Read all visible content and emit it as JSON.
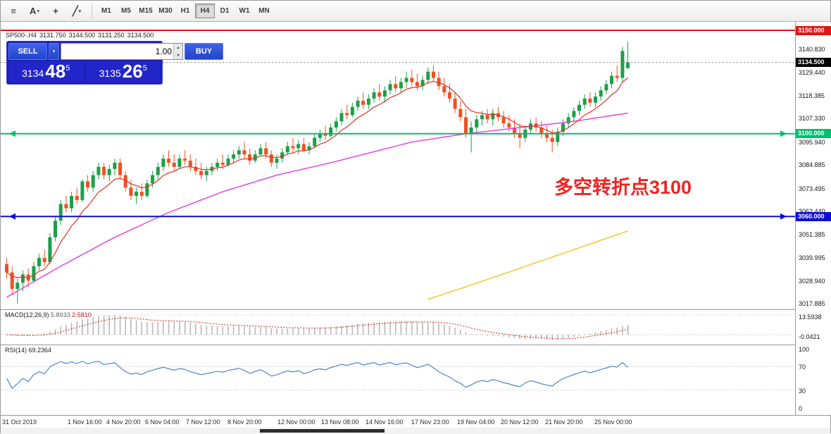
{
  "toolbar": {
    "icons": [
      {
        "name": "grid-icon",
        "glyph": "≡",
        "dropdown": false
      },
      {
        "name": "text-tool-icon",
        "glyph": "A",
        "dropdown": true
      },
      {
        "name": "crosshair-icon",
        "glyph": "+",
        "dropdown": false
      },
      {
        "name": "trendline-tool-icon",
        "glyph": "╱",
        "dropdown": true
      }
    ],
    "timeframes": [
      "M1",
      "M5",
      "M15",
      "M30",
      "H1",
      "H4",
      "D1",
      "W1",
      "MN"
    ],
    "selected_timeframe": "H4"
  },
  "header": {
    "symbol": "SP500-,H4",
    "open": "3131.750",
    "high": "3144.500",
    "low": "3131.250",
    "close": "3134.500"
  },
  "trade_panel": {
    "sell_label": "SELL",
    "buy_label": "BUY",
    "volume": "1.00",
    "sell_price": {
      "big": "3134",
      "mid": "48",
      "sup": "5"
    },
    "buy_price": {
      "big": "3135",
      "mid": "26",
      "sup": "5"
    }
  },
  "annotation": {
    "text": "多空转折点3100",
    "color": "#f02323"
  },
  "levels": [
    {
      "name": "resistance-3150",
      "price": 3150.0,
      "label": "3150.000",
      "color": "#e21414",
      "arrows": false,
      "dotted": false
    },
    {
      "name": "current-price",
      "price": 3134.5,
      "label": "3134.500",
      "color": "#000000",
      "arrows": false,
      "dotted": true
    },
    {
      "name": "pivot-3100",
      "price": 3100.0,
      "label": "3100.000",
      "color": "#00bf6f",
      "arrows": true,
      "dotted": false
    },
    {
      "name": "support-3060",
      "price": 3060.0,
      "label": "3060.000",
      "color": "#0b0bd7",
      "arrows": true,
      "dotted": false
    }
  ],
  "price_axis": [
    "3140.830",
    "3129.440",
    "3118.385",
    "3107.330",
    "3095.940",
    "3084.885",
    "3073.495",
    "3062.440",
    "3051.385",
    "3039.995",
    "3028.940",
    "3017.885"
  ],
  "macd": {
    "name": "MACD(12,26,9)",
    "value": "5.8933",
    "signal_value": "2.5810",
    "axis_max": "13.5938",
    "axis_min": "-0.0421"
  },
  "rsi": {
    "name": "RSI(14)",
    "value": "69.2364",
    "axis": [
      "100",
      "70",
      "30",
      "0"
    ]
  },
  "time_axis": [
    "31 Oct 2019",
    "1 Nov 16:00",
    "4 Nov 20:00",
    "6 Nov 04:00",
    "7 Nov 12:00",
    "8 Nov 20:00",
    "12 Nov 00:00",
    "13 Nov 08:00",
    "14 Nov 16:00",
    "17 Nov 23:00",
    "19 Nov 04:00",
    "20 Nov 12:00",
    "21 Nov 20:00",
    "25 Nov 00:00"
  ],
  "chart_data": {
    "type": "candlestick",
    "symbol": "SP500",
    "timeframe": "H4",
    "price_range": [
      3017.885,
      3150.0
    ],
    "colors": {
      "up": "#1CA049",
      "down": "#F25022"
    },
    "candles_ohlc": [
      [
        3037,
        3040,
        3030,
        3033
      ],
      [
        3033,
        3036,
        3022,
        3025
      ],
      [
        3025,
        3030,
        3018,
        3028
      ],
      [
        3028,
        3034,
        3024,
        3032
      ],
      [
        3032,
        3035,
        3026,
        3029
      ],
      [
        3029,
        3038,
        3028,
        3036
      ],
      [
        3036,
        3042,
        3034,
        3040
      ],
      [
        3040,
        3044,
        3036,
        3038
      ],
      [
        3038,
        3052,
        3037,
        3050
      ],
      [
        3050,
        3060,
        3048,
        3058
      ],
      [
        3058,
        3068,
        3056,
        3066
      ],
      [
        3066,
        3070,
        3062,
        3064
      ],
      [
        3064,
        3072,
        3062,
        3070
      ],
      [
        3070,
        3074,
        3066,
        3068
      ],
      [
        3068,
        3078,
        3067,
        3077
      ],
      [
        3077,
        3080,
        3072,
        3074
      ],
      [
        3074,
        3082,
        3072,
        3080
      ],
      [
        3080,
        3086,
        3078,
        3084
      ],
      [
        3084,
        3086,
        3078,
        3080
      ],
      [
        3080,
        3085,
        3077,
        3083
      ],
      [
        3083,
        3088,
        3080,
        3086
      ],
      [
        3086,
        3088,
        3078,
        3080
      ],
      [
        3080,
        3082,
        3072,
        3074
      ],
      [
        3074,
        3078,
        3068,
        3070
      ],
      [
        3070,
        3074,
        3066,
        3072
      ],
      [
        3072,
        3076,
        3068,
        3070
      ],
      [
        3070,
        3078,
        3069,
        3076
      ],
      [
        3076,
        3082,
        3074,
        3080
      ],
      [
        3080,
        3086,
        3078,
        3084
      ],
      [
        3084,
        3090,
        3082,
        3088
      ],
      [
        3088,
        3092,
        3084,
        3086
      ],
      [
        3086,
        3090,
        3082,
        3084
      ],
      [
        3084,
        3090,
        3083,
        3088
      ],
      [
        3088,
        3092,
        3085,
        3087
      ],
      [
        3087,
        3090,
        3082,
        3084
      ],
      [
        3084,
        3088,
        3080,
        3082
      ],
      [
        3082,
        3086,
        3078,
        3080
      ],
      [
        3080,
        3084,
        3077,
        3082
      ],
      [
        3082,
        3086,
        3080,
        3084
      ],
      [
        3084,
        3088,
        3082,
        3086
      ],
      [
        3086,
        3090,
        3083,
        3085
      ],
      [
        3085,
        3090,
        3084,
        3088
      ],
      [
        3088,
        3092,
        3086,
        3090
      ],
      [
        3090,
        3094,
        3088,
        3092
      ],
      [
        3092,
        3096,
        3088,
        3090
      ],
      [
        3090,
        3093,
        3085,
        3087
      ],
      [
        3087,
        3092,
        3086,
        3090
      ],
      [
        3090,
        3095,
        3089,
        3093
      ],
      [
        3093,
        3096,
        3088,
        3090
      ],
      [
        3090,
        3092,
        3084,
        3086
      ],
      [
        3086,
        3090,
        3083,
        3088
      ],
      [
        3088,
        3093,
        3086,
        3091
      ],
      [
        3091,
        3096,
        3090,
        3094
      ],
      [
        3094,
        3098,
        3091,
        3093
      ],
      [
        3093,
        3097,
        3090,
        3095
      ],
      [
        3095,
        3098,
        3091,
        3092
      ],
      [
        3092,
        3096,
        3090,
        3094
      ],
      [
        3094,
        3100,
        3093,
        3098
      ],
      [
        3098,
        3102,
        3096,
        3100
      ],
      [
        3100,
        3104,
        3097,
        3099
      ],
      [
        3099,
        3105,
        3098,
        3103
      ],
      [
        3103,
        3108,
        3101,
        3106
      ],
      [
        3106,
        3112,
        3104,
        3110
      ],
      [
        3110,
        3114,
        3107,
        3109
      ],
      [
        3109,
        3115,
        3108,
        3113
      ],
      [
        3113,
        3118,
        3111,
        3116
      ],
      [
        3116,
        3120,
        3112,
        3114
      ],
      [
        3114,
        3119,
        3112,
        3117
      ],
      [
        3117,
        3122,
        3115,
        3120
      ],
      [
        3120,
        3124,
        3116,
        3118
      ],
      [
        3118,
        3123,
        3115,
        3121
      ],
      [
        3121,
        3126,
        3119,
        3124
      ],
      [
        3124,
        3128,
        3120,
        3122
      ],
      [
        3122,
        3127,
        3120,
        3125
      ],
      [
        3125,
        3130,
        3122,
        3127
      ],
      [
        3127,
        3131,
        3123,
        3125
      ],
      [
        3125,
        3129,
        3121,
        3123
      ],
      [
        3123,
        3128,
        3121,
        3126
      ],
      [
        3126,
        3132,
        3124,
        3130
      ],
      [
        3130,
        3133,
        3125,
        3127
      ],
      [
        3127,
        3130,
        3121,
        3123
      ],
      [
        3123,
        3127,
        3118,
        3120
      ],
      [
        3120,
        3124,
        3115,
        3117
      ],
      [
        3117,
        3120,
        3110,
        3112
      ],
      [
        3112,
        3116,
        3106,
        3108
      ],
      [
        3108,
        3112,
        3098,
        3100
      ],
      [
        3100,
        3106,
        3091,
        3103
      ],
      [
        3103,
        3109,
        3100,
        3107
      ],
      [
        3107,
        3111,
        3104,
        3109
      ],
      [
        3109,
        3112,
        3105,
        3107
      ],
      [
        3107,
        3112,
        3104,
        3110
      ],
      [
        3110,
        3113,
        3106,
        3108
      ],
      [
        3108,
        3111,
        3103,
        3105
      ],
      [
        3105,
        3109,
        3101,
        3103
      ],
      [
        3103,
        3107,
        3098,
        3100
      ],
      [
        3100,
        3105,
        3093,
        3098
      ],
      [
        3098,
        3104,
        3096,
        3102
      ],
      [
        3102,
        3107,
        3100,
        3105
      ],
      [
        3105,
        3108,
        3101,
        3103
      ],
      [
        3103,
        3106,
        3098,
        3100
      ],
      [
        3100,
        3104,
        3096,
        3098
      ],
      [
        3098,
        3102,
        3091,
        3096
      ],
      [
        3096,
        3103,
        3094,
        3101
      ],
      [
        3101,
        3107,
        3099,
        3105
      ],
      [
        3105,
        3110,
        3103,
        3108
      ],
      [
        3108,
        3113,
        3106,
        3111
      ],
      [
        3111,
        3116,
        3109,
        3114
      ],
      [
        3114,
        3119,
        3112,
        3117
      ],
      [
        3117,
        3120,
        3113,
        3115
      ],
      [
        3115,
        3120,
        3113,
        3118
      ],
      [
        3118,
        3123,
        3116,
        3121
      ],
      [
        3121,
        3126,
        3119,
        3124
      ],
      [
        3124,
        3130,
        3122,
        3128
      ],
      [
        3128,
        3133,
        3125,
        3127
      ],
      [
        3127,
        3142,
        3125,
        3140
      ],
      [
        3131.75,
        3144.5,
        3131.25,
        3134.5
      ]
    ],
    "moving_averages": [
      {
        "name": "fast-ma",
        "color": "#e03224",
        "method": "ema",
        "period": 8
      },
      {
        "name": "mid-ma",
        "color": "#e23ae2",
        "points": [
          [
            0,
            3021
          ],
          [
            10,
            3036
          ],
          [
            20,
            3050
          ],
          [
            30,
            3062
          ],
          [
            40,
            3072
          ],
          [
            50,
            3080
          ],
          [
            60,
            3086
          ],
          [
            75,
            3096
          ],
          [
            85,
            3100
          ],
          [
            95,
            3103
          ],
          [
            105,
            3106
          ],
          [
            115,
            3110
          ]
        ]
      },
      {
        "name": "slow-ma",
        "color": "#f5c321",
        "points": [
          [
            78,
            3020
          ],
          [
            85,
            3026
          ],
          [
            95,
            3035
          ],
          [
            105,
            3044
          ],
          [
            115,
            3053
          ]
        ]
      }
    ],
    "indicators": {
      "macd": {
        "params": [
          12,
          26,
          9
        ],
        "value": 5.8933,
        "signal": 2.581,
        "histogram_color": "#b9b9b9",
        "signal_color": "#cc2222"
      },
      "rsi": {
        "period": 14,
        "value": 69.2364,
        "color": "#3d7dc8",
        "levels": [
          70,
          30
        ]
      }
    }
  }
}
